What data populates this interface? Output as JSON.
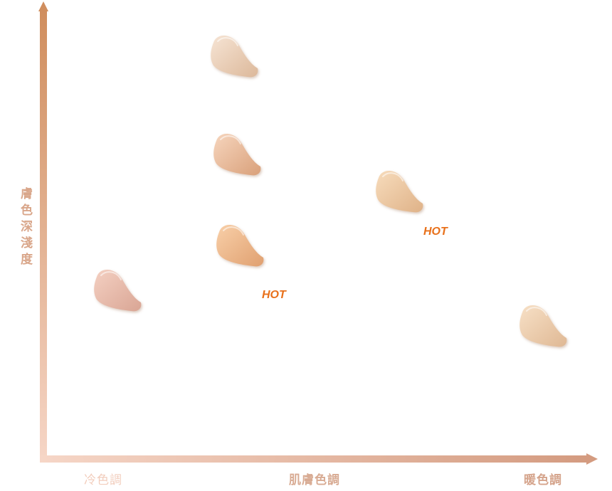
{
  "axes": {
    "y_label": "膚色深淺度",
    "x_left": "冷色調",
    "x_center": "肌膚色調",
    "x_right": "暖色調",
    "y_color_top": "#d08e5e",
    "y_color_bottom": "#f6d6c7",
    "x_color_left": "#f6d6c7",
    "x_color_right": "#d49b80"
  },
  "swatches": [
    {
      "name": "swatch-1",
      "light": "#f6e4d4",
      "dark": "#dcb89a"
    },
    {
      "name": "swatch-2",
      "light": "#f6d5bd",
      "dark": "#d9a07a"
    },
    {
      "name": "swatch-3",
      "light": "#f8cfa8",
      "dark": "#e0a070"
    },
    {
      "name": "swatch-4",
      "light": "#f4d0c2",
      "dark": "#d9a594"
    },
    {
      "name": "swatch-5",
      "light": "#f7dcbc",
      "dark": "#dfb288"
    },
    {
      "name": "swatch-6",
      "light": "#f7e0c6",
      "dark": "#dfb894"
    }
  ],
  "badges": {
    "hot_1": "HOT",
    "hot_2": "HOT",
    "color": "#e8701a"
  }
}
